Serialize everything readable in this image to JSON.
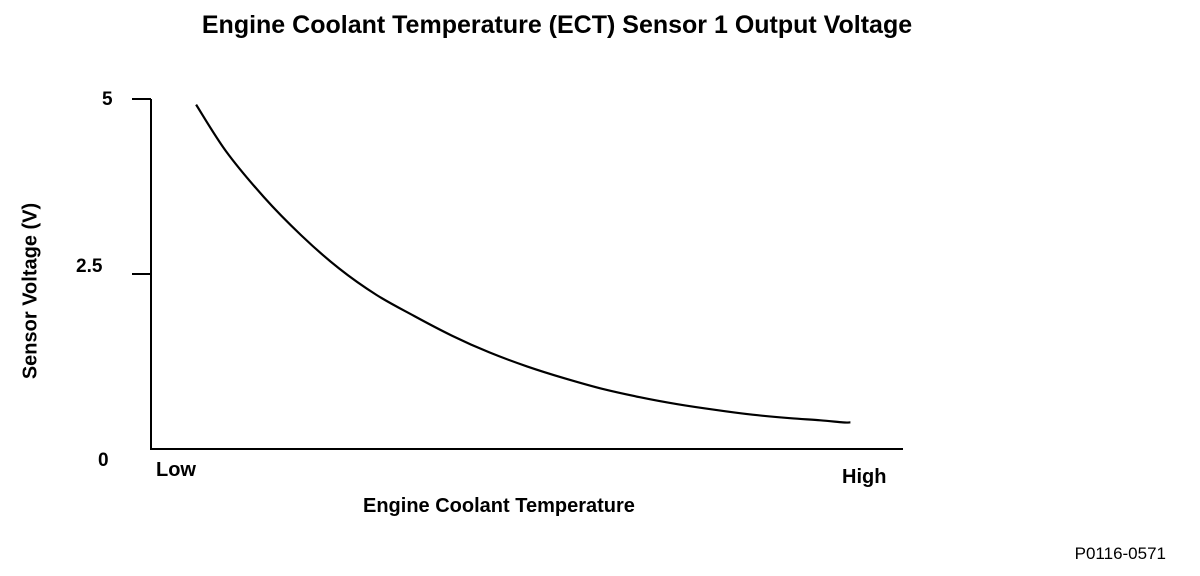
{
  "chart_data": {
    "type": "line",
    "title": "Engine Coolant Temperature (ECT) Sensor 1 Output Voltage",
    "xlabel": "Engine Coolant Temperature",
    "ylabel": "Sensor Voltage (V)",
    "x_categories": [
      "Low",
      "High"
    ],
    "yticks": [
      {
        "label": "5",
        "value": 5
      },
      {
        "label": "2.5",
        "value": 2.5
      }
    ],
    "origin_label": "0",
    "ylim": [
      0,
      5
    ],
    "xlim": [
      0,
      1
    ],
    "grid": false,
    "series": [
      {
        "x": [
          0.06,
          0.1,
          0.15,
          0.2,
          0.25,
          0.3,
          0.35,
          0.4,
          0.45,
          0.5,
          0.55,
          0.6,
          0.65,
          0.7,
          0.75,
          0.8,
          0.85,
          0.89,
          0.92,
          0.93
        ],
        "values": [
          4.92,
          4.25,
          3.6,
          3.05,
          2.58,
          2.2,
          1.9,
          1.62,
          1.38,
          1.18,
          1.01,
          0.86,
          0.74,
          0.64,
          0.56,
          0.49,
          0.44,
          0.41,
          0.38,
          0.38
        ]
      }
    ]
  },
  "figure_code": "P0116-0571"
}
